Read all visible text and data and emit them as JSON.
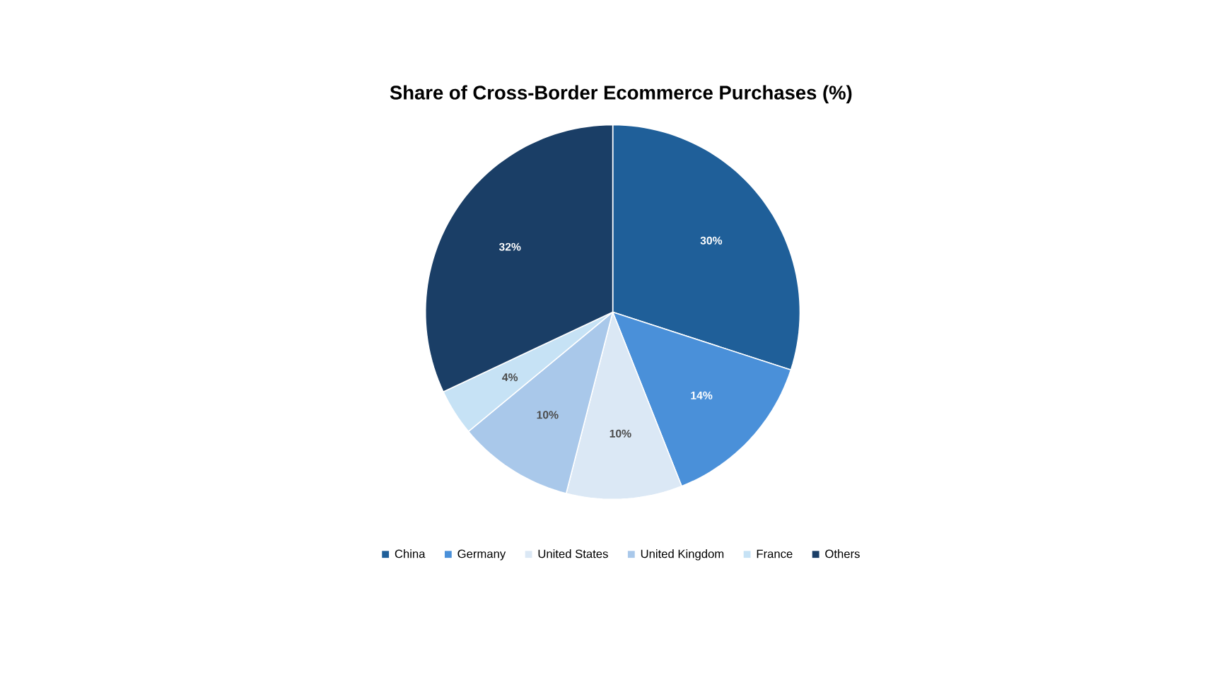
{
  "chart_data": {
    "type": "pie",
    "title": "Share of Cross-Border Ecommerce Purchases (%)",
    "categories": [
      "China",
      "Germany",
      "United States",
      "United Kingdom",
      "France",
      "Others"
    ],
    "values": [
      30,
      14,
      10,
      10,
      4,
      32
    ],
    "value_labels": [
      "30%",
      "14%",
      "10%",
      "10%",
      "4%",
      "32%"
    ],
    "colors": [
      "#1f5f99",
      "#4a90d9",
      "#dbe8f5",
      "#a9c8ea",
      "#c6e2f5",
      "#1a3e66"
    ],
    "legend": "bottom"
  }
}
